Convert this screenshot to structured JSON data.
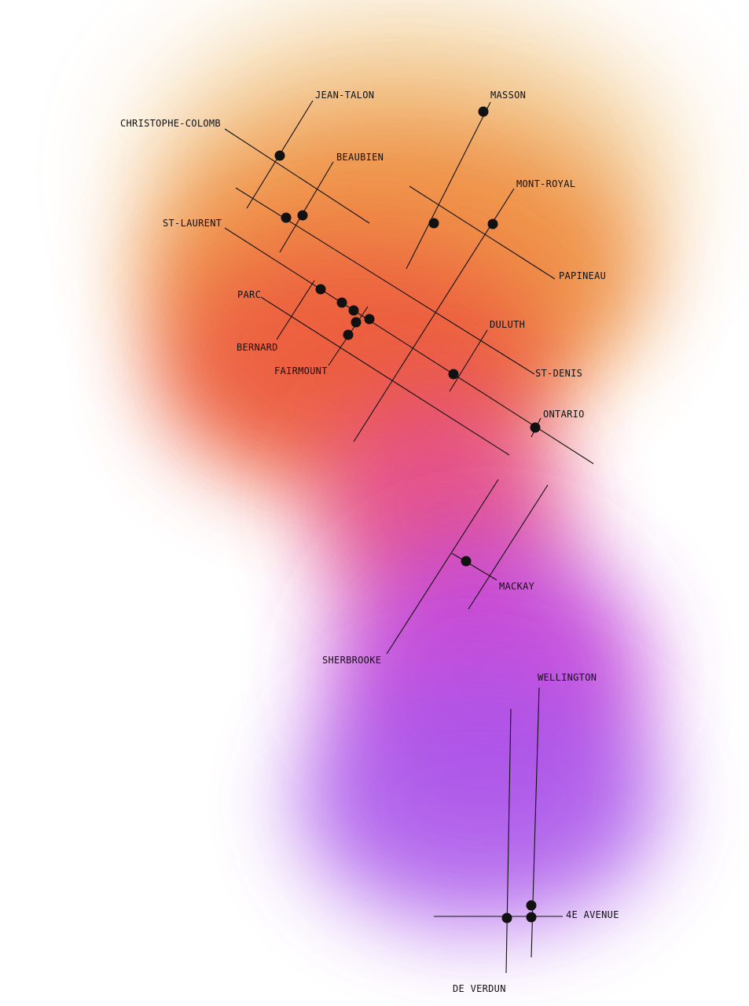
{
  "map": {
    "colors": {
      "zone_top": "#f2c98e",
      "zone_orange": "#ef8f45",
      "zone_red": "#ec5a3e",
      "zone_pink": "#e34a86",
      "zone_magenta": "#c140d8",
      "zone_purple": "#a955ea",
      "lines": "#111111",
      "dots": "#111111"
    },
    "labels": {
      "jean_talon": "JEAN-TALON",
      "masson": "MASSON",
      "christophe_colomb": "CHRISTOPHE-COLOMB",
      "beaubien": "BEAUBIEN",
      "mont_royal": "MONT-ROYAL",
      "st_laurent": "ST-LAURENT",
      "papineau": "PAPINEAU",
      "parc": "PARC",
      "duluth": "DULUTH",
      "bernard": "BERNARD",
      "st_denis": "ST-DENIS",
      "fairmount": "FAIRMOUNT",
      "ontario": "ONTARIO",
      "mackay": "MACKAY",
      "sherbrooke": "SHERBROOKE",
      "wellington": "WELLINGTON",
      "4e_avenue": "4E AVENUE",
      "de_verdun": "DE VERDUN"
    }
  }
}
